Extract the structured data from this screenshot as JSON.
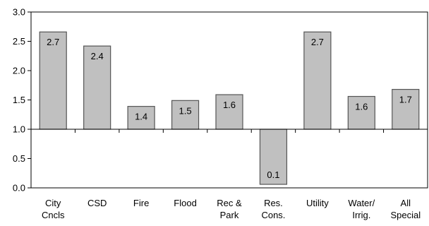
{
  "chart_data": {
    "type": "bar",
    "title": "",
    "xlabel": "",
    "ylabel": "",
    "ylim": [
      0,
      3
    ],
    "baseline": 1.0,
    "yticks": [
      "0.0",
      "0.5",
      "1.0",
      "1.5",
      "2.0",
      "2.5",
      "3.0"
    ],
    "categories": [
      [
        "City",
        "Cncls"
      ],
      [
        "CSD"
      ],
      [
        "Fire"
      ],
      [
        "Flood"
      ],
      [
        "Rec &",
        "Park"
      ],
      [
        "Res.",
        "Cons."
      ],
      [
        "Utility"
      ],
      [
        "Water/",
        "Irrig."
      ],
      [
        "All",
        "Special"
      ]
    ],
    "values": [
      2.66,
      2.42,
      1.39,
      1.49,
      1.59,
      0.06,
      2.66,
      1.56,
      1.68
    ],
    "data_labels": [
      "2.7",
      "2.4",
      "1.4",
      "1.5",
      "1.6",
      "0.1",
      "2.7",
      "1.6",
      "1.7"
    ],
    "colors": {
      "bar_fill": "#c0c0c0",
      "bar_stroke": "#555555",
      "axis": "#000000"
    },
    "grid": false,
    "legend": "none"
  }
}
